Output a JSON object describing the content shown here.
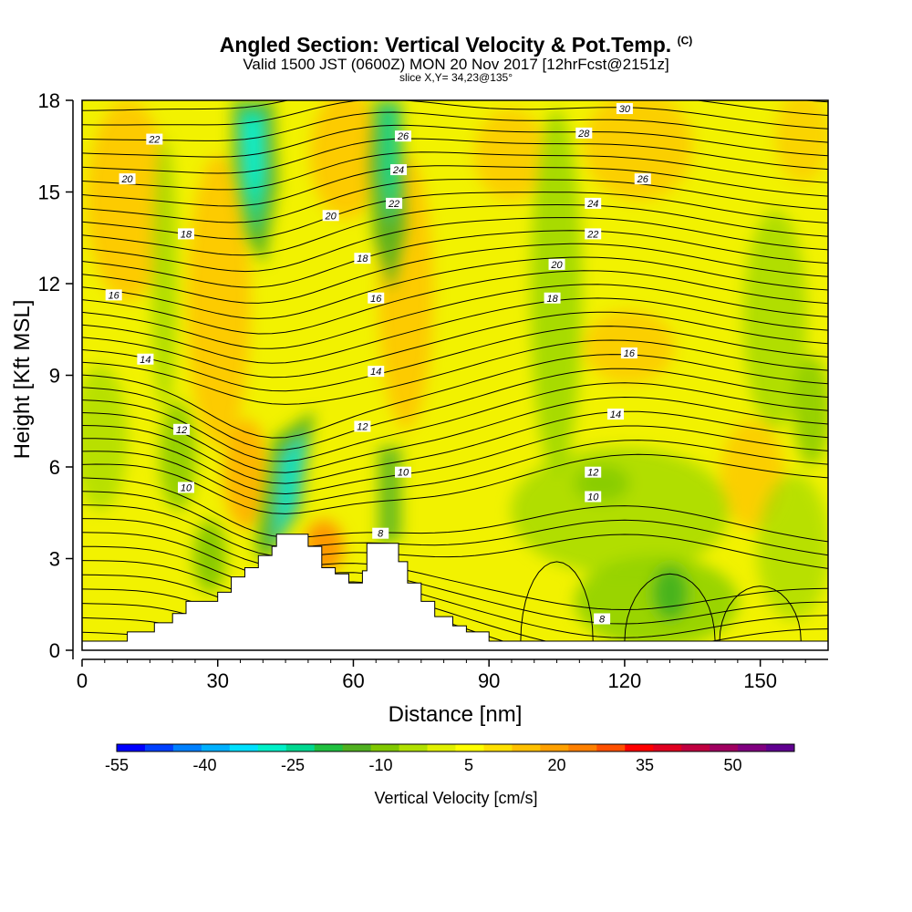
{
  "header": {
    "title": "Angled Section: Vertical Velocity & Pot.Temp.",
    "title_mark": "(C)",
    "line1": "Valid 1500 JST (0600Z) MON 20 Nov 2017 [12hrFcst@2151z]",
    "line2": "slice X,Y= 34,23@135°"
  },
  "chart_data": {
    "type": "heatmap",
    "xlabel": "Distance [nm]",
    "ylabel": "Height [Kft MSL]",
    "xlim": [
      0,
      165
    ],
    "ylim": [
      0,
      18
    ],
    "x_ticks": [
      "0",
      "30",
      "60",
      "90",
      "120",
      "150"
    ],
    "y_ticks": [
      "0",
      "3",
      "6",
      "9",
      "12",
      "15",
      "18"
    ],
    "colorbar": {
      "title": "Vertical Velocity [cm/s]",
      "tick_labels": [
        "-55",
        "-40",
        "-25",
        "-10",
        "5",
        "20",
        "35",
        "50"
      ],
      "colors": [
        "#0000ff",
        "#0040ff",
        "#0080ff",
        "#00b0ff",
        "#00e0ff",
        "#00f0c8",
        "#00d890",
        "#20c040",
        "#50b020",
        "#80c800",
        "#b0e000",
        "#e0f000",
        "#ffff00",
        "#ffe000",
        "#ffc000",
        "#ffa000",
        "#ff8000",
        "#ff5000",
        "#ff0000",
        "#e00020",
        "#c00040",
        "#a00060",
        "#800080",
        "#600090"
      ]
    },
    "terrain": [
      [
        0,
        0.3
      ],
      [
        10,
        0.3
      ],
      [
        10,
        0.6
      ],
      [
        16,
        0.6
      ],
      [
        16,
        0.9
      ],
      [
        20,
        0.9
      ],
      [
        20,
        1.2
      ],
      [
        23,
        1.2
      ],
      [
        23,
        1.6
      ],
      [
        30,
        1.6
      ],
      [
        30,
        1.9
      ],
      [
        33,
        1.9
      ],
      [
        33,
        2.4
      ],
      [
        36,
        2.4
      ],
      [
        36,
        2.7
      ],
      [
        39,
        2.7
      ],
      [
        39,
        3.1
      ],
      [
        42,
        3.1
      ],
      [
        42,
        3.4
      ],
      [
        43,
        3.4
      ],
      [
        43,
        3.8
      ],
      [
        50,
        3.8
      ],
      [
        50,
        3.4
      ],
      [
        53,
        3.4
      ],
      [
        53,
        2.7
      ],
      [
        56,
        2.7
      ],
      [
        56,
        2.5
      ],
      [
        59,
        2.5
      ],
      [
        59,
        2.2
      ],
      [
        62,
        2.2
      ],
      [
        62,
        2.6
      ],
      [
        63,
        2.6
      ],
      [
        63,
        3.5
      ],
      [
        70,
        3.5
      ],
      [
        70,
        2.9
      ],
      [
        72,
        2.9
      ],
      [
        72,
        2.2
      ],
      [
        75,
        2.2
      ],
      [
        75,
        1.6
      ],
      [
        78,
        1.6
      ],
      [
        78,
        1.1
      ],
      [
        82,
        1.1
      ],
      [
        82,
        0.8
      ],
      [
        85,
        0.8
      ],
      [
        85,
        0.6
      ],
      [
        90,
        0.6
      ],
      [
        90,
        0.3
      ],
      [
        165,
        0.3
      ]
    ],
    "contour_labels": [
      {
        "text": "22",
        "x": 16,
        "y": 16.7
      },
      {
        "text": "20",
        "x": 10,
        "y": 15.4
      },
      {
        "text": "18",
        "x": 23,
        "y": 13.6
      },
      {
        "text": "16",
        "x": 7,
        "y": 11.6
      },
      {
        "text": "14",
        "x": 14,
        "y": 9.5
      },
      {
        "text": "12",
        "x": 22,
        "y": 7.2
      },
      {
        "text": "10",
        "x": 23,
        "y": 5.3
      },
      {
        "text": "26",
        "x": 71,
        "y": 16.8
      },
      {
        "text": "24",
        "x": 70,
        "y": 15.7
      },
      {
        "text": "22",
        "x": 69,
        "y": 14.6
      },
      {
        "text": "20",
        "x": 55,
        "y": 14.2
      },
      {
        "text": "18",
        "x": 62,
        "y": 12.8
      },
      {
        "text": "16",
        "x": 65,
        "y": 11.5
      },
      {
        "text": "14",
        "x": 65,
        "y": 9.1
      },
      {
        "text": "12",
        "x": 62,
        "y": 7.3
      },
      {
        "text": "10",
        "x": 71,
        "y": 5.8
      },
      {
        "text": "8",
        "x": 66,
        "y": 3.8
      },
      {
        "text": "30",
        "x": 120,
        "y": 17.7
      },
      {
        "text": "28",
        "x": 111,
        "y": 16.9
      },
      {
        "text": "26",
        "x": 124,
        "y": 15.4
      },
      {
        "text": "24",
        "x": 113,
        "y": 14.6
      },
      {
        "text": "22",
        "x": 113,
        "y": 13.6
      },
      {
        "text": "20",
        "x": 105,
        "y": 12.6
      },
      {
        "text": "18",
        "x": 104,
        "y": 11.5
      },
      {
        "text": "16",
        "x": 121,
        "y": 9.7
      },
      {
        "text": "14",
        "x": 118,
        "y": 7.7
      },
      {
        "text": "12",
        "x": 113,
        "y": 5.8
      },
      {
        "text": "10",
        "x": 113,
        "y": 5.0
      },
      {
        "text": "8",
        "x": 115,
        "y": 1.0
      }
    ]
  }
}
